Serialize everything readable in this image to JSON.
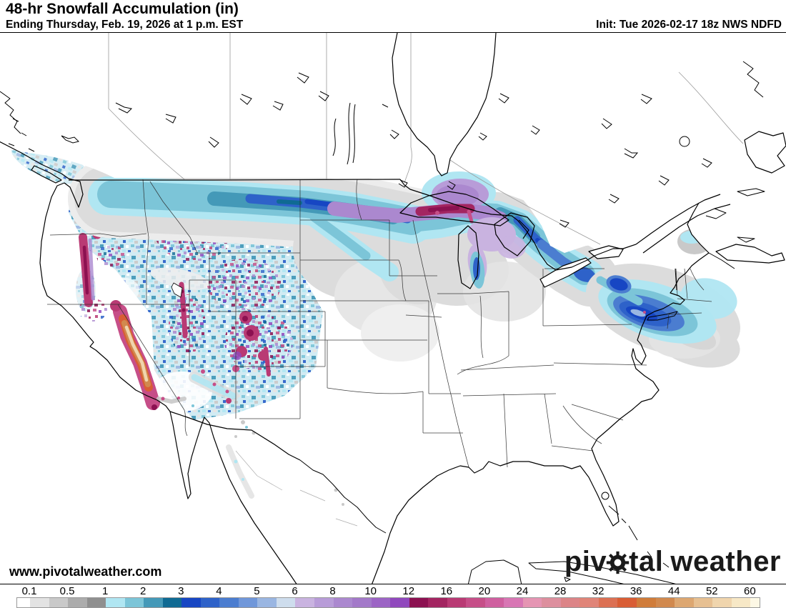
{
  "header": {
    "title": "48-hr Snowfall Accumulation (in)",
    "subtitle": "Ending Thursday, Feb. 19, 2026 at 1 p.m. EST",
    "init_label": "Init: Tue 2026-02-17 18z NWS NDFD"
  },
  "map": {
    "watermark": "www.pivotalweather.com",
    "region": "North America"
  },
  "logo": {
    "prefix": "piv",
    "suffix": "tal",
    "word2": "weather"
  },
  "colorbar": {
    "tick_labels": [
      "0.1",
      "0.5",
      "1",
      "2",
      "3",
      "4",
      "5",
      "6",
      "8",
      "10",
      "12",
      "16",
      "20",
      "24",
      "28",
      "32",
      "36",
      "44",
      "52",
      "60"
    ],
    "start_cap_color": "#ffffff",
    "end_cap_color": "#fdf8e5",
    "segment_colors": [
      "#e3e3e3",
      "#c9c9c9",
      "#acacac",
      "#8f8f8f",
      "#b0e6f2",
      "#7cc5d8",
      "#4499b8",
      "#0f6a93",
      "#1746c3",
      "#2e62c9",
      "#4b7dd0",
      "#7097da",
      "#9ab6e2",
      "#cedded",
      "#c9b3e0",
      "#b89cd8",
      "#ab88cf",
      "#a379c9",
      "#9c64c5",
      "#9048bd",
      "#8c1151",
      "#a32561",
      "#b93a74",
      "#c64e88",
      "#cf5f9f",
      "#d876b4",
      "#e595b3",
      "#dd8f9e",
      "#dc8487",
      "#e08478",
      "#dc7053",
      "#d95d35",
      "#d07c3a",
      "#d1894e",
      "#dda771",
      "#e7c092",
      "#f0d5ad",
      "#f7e8c6"
    ],
    "border_color": "#999999"
  }
}
